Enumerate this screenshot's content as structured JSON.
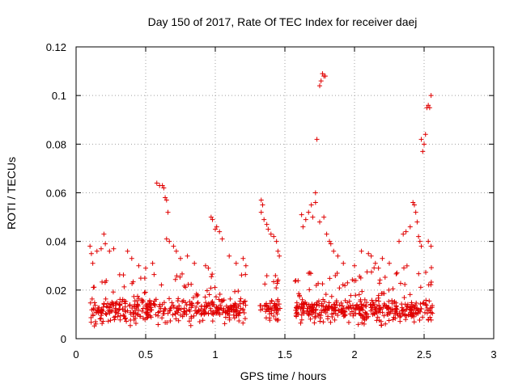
{
  "chart_data": {
    "type": "scatter",
    "title": "Day 150 of 2017, Rate Of TEC Index for receiver daej",
    "xlabel": "GPS time / hours",
    "ylabel": "ROTI / TECUs",
    "xlim": [
      0,
      3
    ],
    "ylim": [
      0,
      0.12
    ],
    "xticks": [
      0,
      0.5,
      1,
      1.5,
      2,
      2.5,
      3
    ],
    "xtick_labels": [
      "0",
      "0.5",
      "1",
      "1.5",
      "2",
      "2.5",
      "3"
    ],
    "yticks": [
      0,
      0.02,
      0.04,
      0.06,
      0.08,
      0.1,
      0.12
    ],
    "ytick_labels": [
      "0",
      "0.02",
      "0.04",
      "0.06",
      "0.08",
      "0.1",
      "0.12"
    ],
    "grid": true,
    "marker": "+",
    "color": "#e00000",
    "series": [
      {
        "name": "ROTI",
        "points": [
          [
            0.1,
            0.038
          ],
          [
            0.11,
            0.035
          ],
          [
            0.12,
            0.031
          ],
          [
            0.15,
            0.036
          ],
          [
            0.18,
            0.037
          ],
          [
            0.2,
            0.043
          ],
          [
            0.21,
            0.039
          ],
          [
            0.24,
            0.036
          ],
          [
            0.27,
            0.037
          ],
          [
            0.37,
            0.036
          ],
          [
            0.4,
            0.033
          ],
          [
            0.45,
            0.03
          ],
          [
            0.5,
            0.029
          ],
          [
            0.55,
            0.031
          ],
          [
            0.58,
            0.064
          ],
          [
            0.6,
            0.063
          ],
          [
            0.62,
            0.063
          ],
          [
            0.63,
            0.062
          ],
          [
            0.64,
            0.058
          ],
          [
            0.65,
            0.057
          ],
          [
            0.66,
            0.052
          ],
          [
            0.65,
            0.041
          ],
          [
            0.67,
            0.04
          ],
          [
            0.7,
            0.038
          ],
          [
            0.72,
            0.036
          ],
          [
            0.75,
            0.033
          ],
          [
            0.8,
            0.034
          ],
          [
            0.85,
            0.031
          ],
          [
            0.93,
            0.03
          ],
          [
            0.95,
            0.029
          ],
          [
            0.97,
            0.05
          ],
          [
            0.98,
            0.049
          ],
          [
            1.0,
            0.045
          ],
          [
            1.01,
            0.046
          ],
          [
            1.03,
            0.044
          ],
          [
            1.05,
            0.041
          ],
          [
            1.1,
            0.034
          ],
          [
            1.15,
            0.031
          ],
          [
            1.2,
            0.033
          ],
          [
            1.22,
            0.03
          ],
          [
            1.33,
            0.057
          ],
          [
            1.34,
            0.055
          ],
          [
            1.33,
            0.052
          ],
          [
            1.35,
            0.049
          ],
          [
            1.37,
            0.047
          ],
          [
            1.38,
            0.045
          ],
          [
            1.4,
            0.043
          ],
          [
            1.42,
            0.042
          ],
          [
            1.44,
            0.04
          ],
          [
            1.45,
            0.036
          ],
          [
            1.46,
            0.034
          ],
          [
            1.62,
            0.051
          ],
          [
            1.63,
            0.046
          ],
          [
            1.65,
            0.049
          ],
          [
            1.67,
            0.052
          ],
          [
            1.69,
            0.055
          ],
          [
            1.7,
            0.05
          ],
          [
            1.72,
            0.06
          ],
          [
            1.72,
            0.056
          ],
          [
            1.75,
            0.048
          ],
          [
            1.78,
            0.05
          ],
          [
            1.8,
            0.043
          ],
          [
            1.82,
            0.04
          ],
          [
            1.83,
            0.039
          ],
          [
            1.85,
            0.036
          ],
          [
            1.73,
            0.082
          ],
          [
            1.75,
            0.104
          ],
          [
            1.76,
            0.106
          ],
          [
            1.77,
            0.109
          ],
          [
            1.78,
            0.108
          ],
          [
            1.79,
            0.108
          ],
          [
            1.88,
            0.034
          ],
          [
            1.92,
            0.031
          ],
          [
            2.0,
            0.03
          ],
          [
            2.05,
            0.036
          ],
          [
            2.1,
            0.035
          ],
          [
            2.12,
            0.034
          ],
          [
            2.15,
            0.031
          ],
          [
            2.2,
            0.033
          ],
          [
            2.25,
            0.031
          ],
          [
            2.32,
            0.04
          ],
          [
            2.35,
            0.043
          ],
          [
            2.37,
            0.044
          ],
          [
            2.4,
            0.046
          ],
          [
            2.42,
            0.056
          ],
          [
            2.43,
            0.055
          ],
          [
            2.44,
            0.052
          ],
          [
            2.45,
            0.048
          ],
          [
            2.46,
            0.042
          ],
          [
            2.47,
            0.04
          ],
          [
            2.48,
            0.038
          ],
          [
            2.48,
            0.082
          ],
          [
            2.49,
            0.077
          ],
          [
            2.5,
            0.08
          ],
          [
            2.51,
            0.084
          ],
          [
            2.52,
            0.095
          ],
          [
            2.53,
            0.096
          ],
          [
            2.54,
            0.095
          ],
          [
            2.55,
            0.1
          ],
          [
            2.53,
            0.04
          ],
          [
            2.55,
            0.038
          ]
        ]
      }
    ],
    "dense_bands": [
      {
        "x_range": [
          0.1,
          1.22
        ],
        "y_range": [
          0.005,
          0.027
        ],
        "n": 420,
        "ymode": 0.012
      },
      {
        "x_range": [
          1.32,
          1.47
        ],
        "y_range": [
          0.006,
          0.028
        ],
        "n": 60,
        "ymode": 0.012
      },
      {
        "x_range": [
          1.57,
          2.56
        ],
        "y_range": [
          0.005,
          0.03
        ],
        "n": 420,
        "ymode": 0.012
      }
    ]
  }
}
